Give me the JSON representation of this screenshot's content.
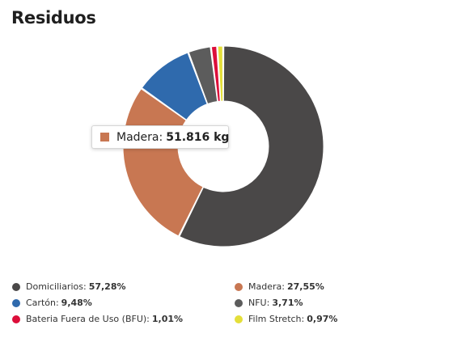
{
  "title": "Residuos",
  "tooltip": {
    "label": "Madera:",
    "value": "51.816 kg",
    "color": "#c87752"
  },
  "chart_data": {
    "type": "pie",
    "title": "Residuos",
    "categories": [
      "Domiciliarios",
      "Madera",
      "Cartón",
      "NFU",
      "Bateria Fuera de Uso (BFU)",
      "Film Stretch"
    ],
    "values": [
      57.28,
      27.55,
      9.48,
      3.71,
      1.01,
      0.97
    ],
    "labels": [
      "57,28%",
      "27,55%",
      "9,48%",
      "3,71%",
      "1,01%",
      "0,97%"
    ],
    "colors": [
      "#4a4848",
      "#c87752",
      "#2f6aad",
      "#5c5c5c",
      "#dc0e3a",
      "#e4df3a"
    ],
    "donut": true,
    "legend_position": "bottom"
  },
  "legend": [
    {
      "label": "Domiciliarios:",
      "value": "57,28%",
      "color": "#4a4848"
    },
    {
      "label": "Madera:",
      "value": "27,55%",
      "color": "#c87752"
    },
    {
      "label": "Cartón:",
      "value": "9,48%",
      "color": "#2f6aad"
    },
    {
      "label": "NFU:",
      "value": "3,71%",
      "color": "#5c5c5c"
    },
    {
      "label": "Bateria Fuera de Uso (BFU):",
      "value": "1,01%",
      "color": "#dc0e3a"
    },
    {
      "label": "Film Stretch:",
      "value": "0,97%",
      "color": "#e4df3a"
    }
  ]
}
